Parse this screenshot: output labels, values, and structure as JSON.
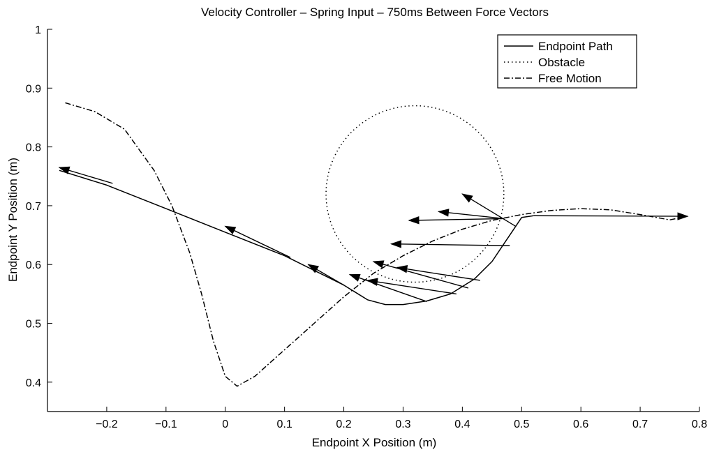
{
  "chart_data": {
    "type": "line",
    "title": "Velocity Controller – Spring Input – 750ms Between Force Vectors",
    "xlabel": "Endpoint X Position (m)",
    "ylabel": "Endpoint Y Position (m)",
    "xlim": [
      -0.3,
      0.8
    ],
    "ylim": [
      0.35,
      1.0
    ],
    "xticks": [
      -0.2,
      -0.1,
      0,
      0.1,
      0.2,
      0.3,
      0.4,
      0.5,
      0.6,
      0.7,
      0.8
    ],
    "xtick_labels": [
      "−0.2",
      "−0.1",
      "0",
      "0.1",
      "0.2",
      "0.3",
      "0.4",
      "0.5",
      "0.6",
      "0.7",
      "0.8"
    ],
    "yticks": [
      0.4,
      0.5,
      0.6,
      0.7,
      0.8,
      0.9,
      1.0
    ],
    "ytick_labels": [
      "0.4",
      "0.5",
      "0.6",
      "0.7",
      "0.8",
      "0.9",
      "1"
    ],
    "grid": false,
    "legend_position": "top-right",
    "series": [
      {
        "name": "Endpoint Path",
        "style": "solid",
        "x": [
          -0.28,
          -0.2,
          -0.1,
          0.0,
          0.1,
          0.15,
          0.2,
          0.24,
          0.27,
          0.3,
          0.34,
          0.38,
          0.42,
          0.45,
          0.47,
          0.49,
          0.5,
          0.52
        ],
        "y": [
          0.76,
          0.735,
          0.695,
          0.655,
          0.615,
          0.59,
          0.565,
          0.54,
          0.532,
          0.532,
          0.538,
          0.55,
          0.575,
          0.605,
          0.635,
          0.665,
          0.68,
          0.683
        ]
      },
      {
        "name": "Obstacle",
        "style": "dotted",
        "shape": "circle",
        "center": [
          0.32,
          0.72
        ],
        "radius": 0.15
      },
      {
        "name": "Free Motion",
        "style": "dashdot",
        "x": [
          -0.27,
          -0.22,
          -0.17,
          -0.12,
          -0.09,
          -0.06,
          -0.04,
          -0.02,
          0.0,
          0.02,
          0.05,
          0.1,
          0.15,
          0.2,
          0.25,
          0.3,
          0.35,
          0.4,
          0.45,
          0.5,
          0.55,
          0.6,
          0.65,
          0.7,
          0.75,
          0.78
        ],
        "y": [
          0.875,
          0.86,
          0.83,
          0.76,
          0.7,
          0.62,
          0.55,
          0.47,
          0.41,
          0.393,
          0.41,
          0.455,
          0.5,
          0.545,
          0.585,
          0.615,
          0.64,
          0.66,
          0.675,
          0.685,
          0.692,
          0.695,
          0.693,
          0.685,
          0.676,
          0.682
        ]
      }
    ],
    "force_vectors": [
      {
        "x1": 0.52,
        "y1": 0.683,
        "x2": 0.78,
        "y2": 0.682
      },
      {
        "x1": 0.47,
        "y1": 0.678,
        "x2": 0.31,
        "y2": 0.675
      },
      {
        "x1": 0.47,
        "y1": 0.678,
        "x2": 0.36,
        "y2": 0.69
      },
      {
        "x1": 0.49,
        "y1": 0.665,
        "x2": 0.4,
        "y2": 0.72
      },
      {
        "x1": 0.48,
        "y1": 0.632,
        "x2": 0.28,
        "y2": 0.635
      },
      {
        "x1": 0.43,
        "y1": 0.573,
        "x2": 0.29,
        "y2": 0.595
      },
      {
        "x1": 0.41,
        "y1": 0.56,
        "x2": 0.25,
        "y2": 0.605
      },
      {
        "x1": 0.39,
        "y1": 0.55,
        "x2": 0.24,
        "y2": 0.573
      },
      {
        "x1": 0.34,
        "y1": 0.537,
        "x2": 0.21,
        "y2": 0.583
      },
      {
        "x1": 0.2,
        "y1": 0.565,
        "x2": 0.14,
        "y2": 0.6
      },
      {
        "x1": 0.11,
        "y1": 0.612,
        "x2": 0.0,
        "y2": 0.665
      },
      {
        "x1": -0.19,
        "y1": 0.738,
        "x2": -0.28,
        "y2": 0.765
      }
    ]
  }
}
